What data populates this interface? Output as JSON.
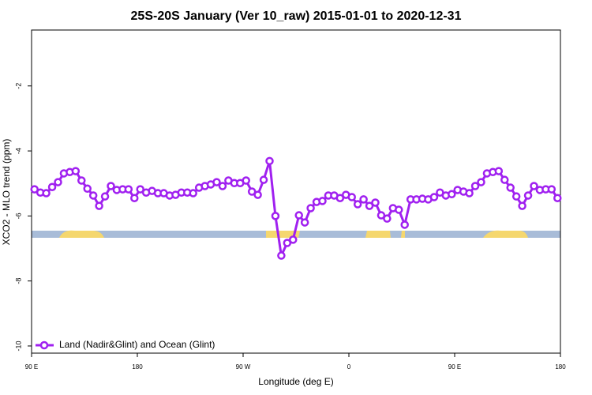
{
  "chart_data": {
    "type": "line",
    "title": "25S-20S January (Ver 10_raw)   2015-01-01 to 2020-12-31",
    "x_label": "Longitude (deg E)",
    "y_label": "XCO2 - MLO trend (ppm)",
    "xlim": [
      90,
      540
    ],
    "xticks": [
      {
        "value": 90,
        "label": "90 E"
      },
      180,
      {
        "value": 270,
        "label": "90 W"
      },
      {
        "value": 360,
        "label": "0"
      },
      {
        "value": 450,
        "label": "90 E"
      },
      {
        "value": 540,
        "label": "180"
      }
    ],
    "ylim": [
      -10.22,
      -0.28
    ],
    "yticks": [
      -2,
      -4,
      -6,
      -8,
      -10
    ],
    "legend": "bottom-left",
    "x": [
      92.5,
      97.5,
      102.5,
      107.5,
      112.5,
      117.5,
      122.5,
      127.5,
      132.5,
      137.5,
      142.5,
      147.5,
      152.5,
      157.5,
      162.5,
      167.5,
      172.5,
      177.5,
      182.5,
      187.5,
      192.5,
      197.5,
      202.5,
      207.5,
      212.5,
      217.5,
      222.5,
      227.5,
      232.5,
      237.5,
      242.5,
      247.5,
      252.5,
      257.5,
      262.5,
      267.5,
      272.5,
      277.5,
      282.5,
      287.5,
      292.5,
      297.5,
      302.5,
      307.5,
      312.5,
      317.5,
      322.5,
      327.5,
      332.5,
      337.5,
      342.5,
      347.5,
      352.5,
      357.5,
      362.5,
      367.5,
      372.5,
      377.5,
      382.5,
      387.5,
      392.5,
      397.5,
      402.5,
      407.5,
      412.5,
      417.5,
      422.5,
      427.5,
      432.5,
      437.5,
      442.5,
      447.5,
      452.5,
      457.5,
      462.5,
      467.5,
      472.5,
      477.5,
      482.5,
      487.5,
      492.5,
      497.5,
      502.5,
      507.5,
      512.5,
      517.5,
      522.5,
      527.5,
      532.5,
      537.5
    ],
    "series": [
      {
        "name": "Land (Nadir&Glint) and Ocean (Glint)",
        "color": "#a020f0",
        "values": [
          -5.18,
          -5.28,
          -5.3,
          -5.11,
          -4.96,
          -4.69,
          -4.65,
          -4.62,
          -4.91,
          -5.16,
          -5.37,
          -5.69,
          -5.4,
          -5.08,
          -5.2,
          -5.18,
          -5.18,
          -5.45,
          -5.18,
          -5.28,
          -5.23,
          -5.3,
          -5.3,
          -5.37,
          -5.35,
          -5.28,
          -5.28,
          -5.3,
          -5.13,
          -5.08,
          -5.03,
          -4.96,
          -5.08,
          -4.91,
          -4.99,
          -4.99,
          -4.91,
          -5.25,
          -5.35,
          -4.89,
          -4.31,
          -6.0,
          -7.22,
          -6.83,
          -6.73,
          -5.98,
          -6.2,
          -5.76,
          -5.57,
          -5.54,
          -5.37,
          -5.37,
          -5.45,
          -5.35,
          -5.42,
          -5.64,
          -5.49,
          -5.69,
          -5.59,
          -5.98,
          -6.08,
          -5.76,
          -5.81,
          -6.27,
          -5.49,
          -5.49,
          -5.47,
          -5.49,
          -5.42,
          -5.28,
          -5.37,
          -5.33,
          -5.2,
          -5.25,
          -5.3,
          -5.08,
          -4.96,
          -4.69,
          -4.65,
          -4.62,
          -4.89,
          -5.13,
          -5.4,
          -5.69,
          -5.37,
          -5.08,
          -5.2,
          -5.18,
          -5.18,
          -5.45
        ]
      }
    ]
  }
}
